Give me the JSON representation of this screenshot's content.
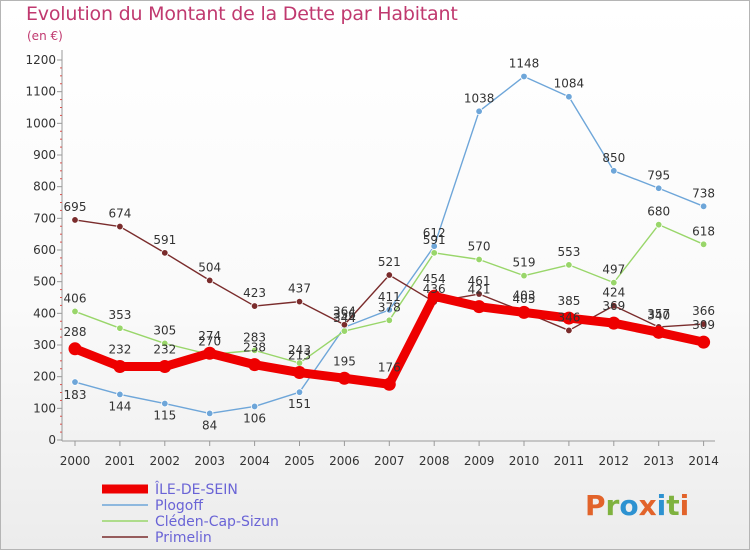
{
  "title": "Evolution du Montant de la Dette par Habitant",
  "subtitle": "(en €)",
  "logo": "Proxiti",
  "chart_data": {
    "type": "line",
    "x": [
      "2000",
      "2001",
      "2002",
      "2003",
      "2004",
      "2005",
      "2006",
      "2007",
      "2008",
      "2009",
      "2010",
      "2011",
      "2012",
      "2013",
      "2014"
    ],
    "ylim": [
      0,
      1200
    ],
    "yticks": [
      0,
      100,
      200,
      300,
      400,
      500,
      600,
      700,
      800,
      900,
      1000,
      1100,
      1200
    ],
    "grid": false,
    "legend_position": "bottom-left",
    "series": [
      {
        "name": "ÎLE-DE-SEIN",
        "color": "#ee0000",
        "values": [
          288,
          232,
          232,
          274,
          238,
          213,
          195,
          176,
          454,
          421,
          403,
          385,
          369,
          340,
          309
        ]
      },
      {
        "name": "Plogoff",
        "color": "#6ea6d9",
        "values": [
          183,
          144,
          115,
          84,
          106,
          151,
          356,
          411,
          612,
          1038,
          1148,
          1084,
          850,
          795,
          738
        ]
      },
      {
        "name": "Cléden-Cap-Sizun",
        "color": "#99d66a",
        "values": [
          406,
          353,
          305,
          270,
          283,
          243,
          344,
          378,
          591,
          570,
          519,
          553,
          497,
          680,
          618
        ]
      },
      {
        "name": "Primelin",
        "color": "#7a2c2c",
        "values": [
          695,
          674,
          591,
          504,
          423,
          437,
          364,
          521,
          436,
          461,
          405,
          346,
          424,
          357,
          366
        ]
      }
    ]
  }
}
